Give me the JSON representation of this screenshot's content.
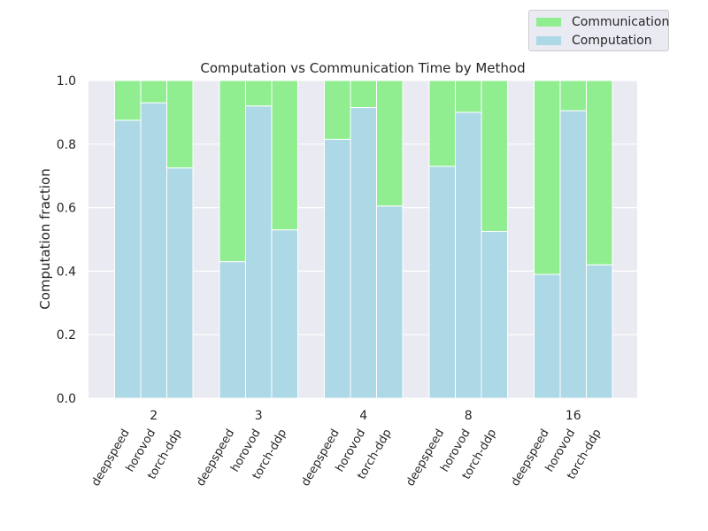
{
  "chart_data": {
    "type": "bar",
    "stacked": true,
    "title": "Computation vs Communication Time by Method",
    "xlabel": "",
    "ylabel": "Computation fraction",
    "ylim": [
      0,
      1
    ],
    "yticks": [
      "0.0",
      "0.2",
      "0.4",
      "0.6",
      "0.8",
      "1.0"
    ],
    "grid": true,
    "legend_position": "upper-right, above plot",
    "groups": [
      "2",
      "3",
      "4",
      "8",
      "16"
    ],
    "methods": [
      "deepspeed",
      "horovod",
      "torch-ddp"
    ],
    "series": [
      {
        "name": "Computation",
        "color": "#add8e6",
        "values": [
          [
            0.875,
            0.93,
            0.725
          ],
          [
            0.43,
            0.92,
            0.53
          ],
          [
            0.815,
            0.915,
            0.605
          ],
          [
            0.73,
            0.9,
            0.525
          ],
          [
            0.39,
            0.905,
            0.42
          ]
        ]
      },
      {
        "name": "Communication",
        "color": "#90ee90",
        "values": [
          [
            0.125,
            0.07,
            0.275
          ],
          [
            0.57,
            0.08,
            0.47
          ],
          [
            0.185,
            0.085,
            0.395
          ],
          [
            0.27,
            0.1,
            0.475
          ],
          [
            0.61,
            0.095,
            0.58
          ]
        ]
      }
    ]
  },
  "legend": [
    {
      "label": "Communication",
      "color": "#90ee90"
    },
    {
      "label": "Computation",
      "color": "#add8e6"
    }
  ],
  "style": {
    "plot_background": "#eaeaf2",
    "grid_color": "#ffffff"
  }
}
